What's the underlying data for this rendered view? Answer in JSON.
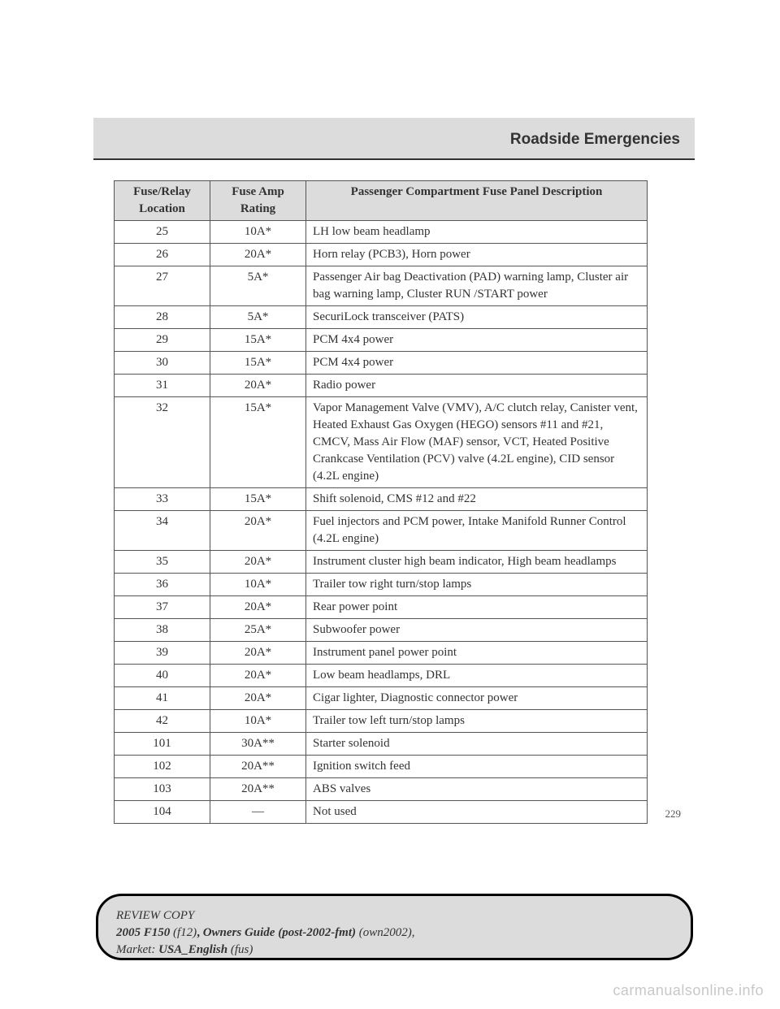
{
  "header": {
    "section_title": "Roadside Emergencies",
    "header_bg": "#dcdcdc"
  },
  "table": {
    "columns": [
      "Fuse/Relay Location",
      "Fuse Amp Rating",
      "Passenger Compartment Fuse Panel Description"
    ],
    "header_bg": "#dcdcdc",
    "border_color": "#555555",
    "rows": [
      {
        "loc": "25",
        "amp": "10A*",
        "desc": "LH low beam headlamp"
      },
      {
        "loc": "26",
        "amp": "20A*",
        "desc": "Horn relay (PCB3), Horn power"
      },
      {
        "loc": "27",
        "amp": "5A*",
        "desc": "Passenger Air bag Deactivation (PAD) warning lamp, Cluster air bag warning lamp, Cluster RUN /START power"
      },
      {
        "loc": "28",
        "amp": "5A*",
        "desc": "SecuriLock transceiver (PATS)"
      },
      {
        "loc": "29",
        "amp": "15A*",
        "desc": "PCM 4x4 power"
      },
      {
        "loc": "30",
        "amp": "15A*",
        "desc": "PCM 4x4 power"
      },
      {
        "loc": "31",
        "amp": "20A*",
        "desc": "Radio power"
      },
      {
        "loc": "32",
        "amp": "15A*",
        "desc": "Vapor Management Valve (VMV), A/C clutch relay, Canister vent, Heated Exhaust Gas Oxygen (HEGO) sensors #11 and #21, CMCV, Mass Air Flow (MAF) sensor, VCT, Heated Positive Crankcase Ventilation (PCV) valve (4.2L engine), CID sensor (4.2L engine)"
      },
      {
        "loc": "33",
        "amp": "15A*",
        "desc": "Shift solenoid, CMS #12 and #22"
      },
      {
        "loc": "34",
        "amp": "20A*",
        "desc": "Fuel injectors and PCM power, Intake Manifold Runner Control (4.2L engine)"
      },
      {
        "loc": "35",
        "amp": "20A*",
        "desc": "Instrument cluster high beam indicator, High beam headlamps"
      },
      {
        "loc": "36",
        "amp": "10A*",
        "desc": "Trailer tow right turn/stop lamps"
      },
      {
        "loc": "37",
        "amp": "20A*",
        "desc": "Rear power point"
      },
      {
        "loc": "38",
        "amp": "25A*",
        "desc": "Subwoofer power"
      },
      {
        "loc": "39",
        "amp": "20A*",
        "desc": "Instrument panel power point"
      },
      {
        "loc": "40",
        "amp": "20A*",
        "desc": "Low beam headlamps, DRL"
      },
      {
        "loc": "41",
        "amp": "20A*",
        "desc": "Cigar lighter, Diagnostic connector power"
      },
      {
        "loc": "42",
        "amp": "10A*",
        "desc": "Trailer tow left turn/stop lamps"
      },
      {
        "loc": "101",
        "amp": "30A**",
        "desc": "Starter solenoid"
      },
      {
        "loc": "102",
        "amp": "20A**",
        "desc": "Ignition switch feed"
      },
      {
        "loc": "103",
        "amp": "20A**",
        "desc": "ABS valves"
      },
      {
        "loc": "104",
        "amp": "—",
        "desc": "Not used"
      }
    ]
  },
  "page_number": "229",
  "footer": {
    "line1_italic": "REVIEW COPY",
    "line2_bolditalic": "2005 F150",
    "line2_italic1": " (f12)",
    "line2_sep": ", ",
    "line2_bolditalic2": "Owners Guide (post-2002-fmt)",
    "line2_italic2": " (own2002),",
    "line3_label": "Market: ",
    "line3_bolditalic": "USA_English",
    "line3_italic": " (fus)",
    "bg": "#dcdcdc",
    "border_color": "#000000",
    "border_radius": 32
  },
  "watermark": "carmanualsonline.info"
}
